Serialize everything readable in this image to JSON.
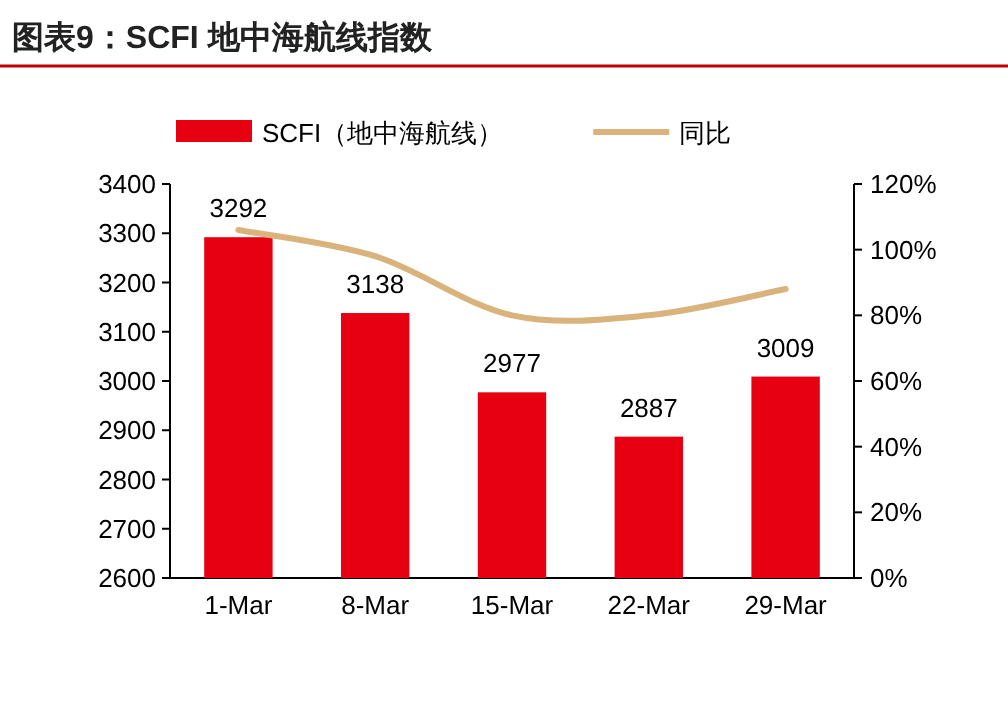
{
  "chart_data": {
    "type": "bar",
    "title": "图表9：SCFI 地中海航线指数",
    "categories": [
      "1-Mar",
      "8-Mar",
      "15-Mar",
      "22-Mar",
      "29-Mar"
    ],
    "series": [
      {
        "name": "SCFI（地中海航线）",
        "color": "#e60012",
        "values": [
          3292,
          3138,
          2977,
          2887,
          3009
        ],
        "value_labels": [
          "3292",
          "3138",
          "2977",
          "2887",
          "3009"
        ]
      },
      {
        "name": "同比",
        "type": "line",
        "axis": "y2",
        "color": "#d9b27c",
        "values": [
          106,
          98,
          80,
          80,
          88
        ]
      }
    ],
    "ylim": [
      2600,
      3400
    ],
    "yticks": [
      2600,
      2700,
      2800,
      2900,
      3000,
      3100,
      3200,
      3300,
      3400
    ],
    "y2lim": [
      0,
      120
    ],
    "y2ticks": [
      {
        "value": 0,
        "label": "0%"
      },
      {
        "value": 20,
        "label": "20%"
      },
      {
        "value": 40,
        "label": "40%"
      },
      {
        "value": 60,
        "label": "60%"
      },
      {
        "value": 80,
        "label": "80%"
      },
      {
        "value": 100,
        "label": "100%"
      },
      {
        "value": 120,
        "label": "120%"
      }
    ],
    "legend": "top",
    "grid": false
  }
}
